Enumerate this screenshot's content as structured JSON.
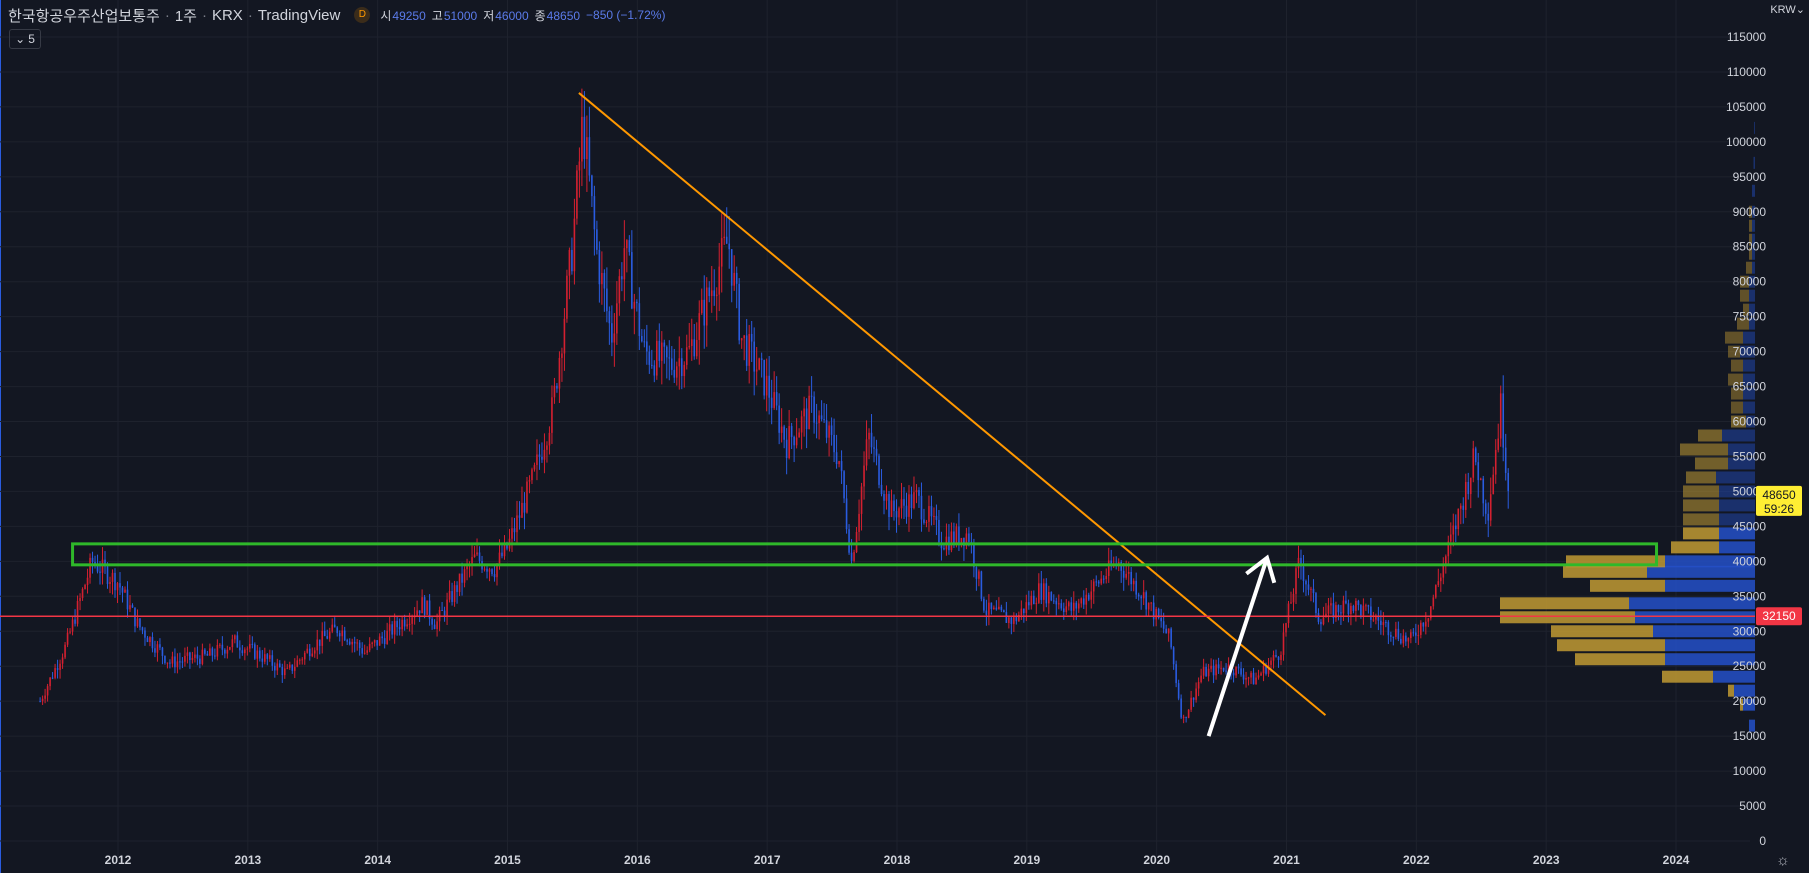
{
  "header": {
    "symbol": "한국항공우주산업보통주",
    "interval": "1주",
    "exchange": "KRX",
    "source": "TradingView",
    "badge": "D",
    "open_label": "시",
    "open": "49250",
    "high_label": "고",
    "high": "51000",
    "low_label": "저",
    "low": "46000",
    "close_label": "종",
    "close": "48650",
    "change": "−850 (−1.72%)"
  },
  "collapse_count": "5",
  "currency": "KRW",
  "colors": {
    "background": "#131722",
    "up": "#d42030",
    "down": "#2a5ce0",
    "trendline": "#ff9800",
    "zone": "#2fb82a",
    "hline": "#f23645",
    "vp_up": "#c19a33",
    "vp_down": "#2450c8",
    "price_tag": "#ffee33"
  },
  "chart_data": {
    "type": "candlestick",
    "title": "한국항공우주산업보통주 · 1주 · KRX",
    "x_ticks": [
      "2012",
      "2013",
      "2014",
      "2015",
      "2016",
      "2017",
      "2018",
      "2019",
      "2020",
      "2021",
      "2022",
      "2023",
      "2024"
    ],
    "y_ticks": [
      0,
      5000,
      10000,
      15000,
      20000,
      25000,
      30000,
      35000,
      40000,
      45000,
      50000,
      55000,
      60000,
      65000,
      70000,
      75000,
      80000,
      85000,
      90000,
      95000,
      100000,
      105000,
      110000,
      115000
    ],
    "ylim": [
      0,
      117000
    ],
    "price_path": [
      [
        2011.4,
        20000
      ],
      [
        2011.6,
        28000
      ],
      [
        2011.8,
        40000
      ],
      [
        2012.0,
        37000
      ],
      [
        2012.15,
        31000
      ],
      [
        2012.4,
        25500
      ],
      [
        2012.7,
        26500
      ],
      [
        2012.9,
        28500
      ],
      [
        2013.1,
        26500
      ],
      [
        2013.3,
        24000
      ],
      [
        2013.5,
        28000
      ],
      [
        2013.7,
        30500
      ],
      [
        2013.9,
        27000
      ],
      [
        2014.1,
        30000
      ],
      [
        2014.35,
        34000
      ],
      [
        2014.45,
        31000
      ],
      [
        2014.6,
        36000
      ],
      [
        2014.75,
        40500
      ],
      [
        2014.9,
        39000
      ],
      [
        2015.0,
        42000
      ],
      [
        2015.2,
        52000
      ],
      [
        2015.35,
        62000
      ],
      [
        2015.5,
        85000
      ],
      [
        2015.58,
        103000
      ],
      [
        2015.68,
        85000
      ],
      [
        2015.8,
        72000
      ],
      [
        2015.9,
        85000
      ],
      [
        2016.05,
        70000
      ],
      [
        2016.25,
        68000
      ],
      [
        2016.4,
        70000
      ],
      [
        2016.55,
        78000
      ],
      [
        2016.7,
        86000
      ],
      [
        2016.8,
        72000
      ],
      [
        2017.0,
        65000
      ],
      [
        2017.15,
        57000
      ],
      [
        2017.35,
        62000
      ],
      [
        2017.55,
        55000
      ],
      [
        2017.65,
        40000
      ],
      [
        2017.78,
        58000
      ],
      [
        2017.95,
        47000
      ],
      [
        2018.15,
        49000
      ],
      [
        2018.35,
        43000
      ],
      [
        2018.55,
        44000
      ],
      [
        2018.68,
        33000
      ],
      [
        2018.9,
        31500
      ],
      [
        2019.1,
        36000
      ],
      [
        2019.35,
        33000
      ],
      [
        2019.55,
        37000
      ],
      [
        2019.7,
        40000
      ],
      [
        2019.9,
        35000
      ],
      [
        2020.1,
        29000
      ],
      [
        2020.2,
        17000
      ],
      [
        2020.35,
        24000
      ],
      [
        2020.55,
        25000
      ],
      [
        2020.75,
        23000
      ],
      [
        2020.95,
        27000
      ],
      [
        2021.1,
        40000
      ],
      [
        2021.25,
        32000
      ],
      [
        2021.5,
        34000
      ],
      [
        2021.75,
        31000
      ],
      [
        2021.95,
        28500
      ],
      [
        2022.1,
        33000
      ],
      [
        2022.3,
        45000
      ],
      [
        2022.45,
        55000
      ],
      [
        2022.55,
        47000
      ],
      [
        2022.65,
        62000
      ],
      [
        2022.72,
        48650
      ]
    ],
    "trendline": [
      [
        2015.55,
        107000
      ],
      [
        2021.3,
        18000
      ]
    ],
    "arrow": {
      "from": [
        2020.4,
        15000
      ],
      "to": [
        2020.85,
        40500
      ]
    },
    "resistance_zone": {
      "y_top": 42500,
      "y_bottom": 39500,
      "x_start": 2011.65,
      "x_end": 2023.85
    },
    "horizontal_line": 32150,
    "last_price": "48650",
    "countdown": "59:26",
    "hline_label": "32150",
    "volume_profile": [
      {
        "price": 16500,
        "down": 0.02,
        "up": 0.0
      },
      {
        "price": 19500,
        "down": 0.04,
        "up": 0.01
      },
      {
        "price": 21500,
        "down": 0.07,
        "up": 0.02
      },
      {
        "price": 23500,
        "down": 0.14,
        "up": 0.17
      },
      {
        "price": 26000,
        "down": 0.3,
        "up": 0.3
      },
      {
        "price": 28000,
        "down": 0.3,
        "up": 0.36
      },
      {
        "price": 30000,
        "down": 0.34,
        "up": 0.34
      },
      {
        "price": 32000,
        "down": 0.4,
        "up": 0.45
      },
      {
        "price": 34000,
        "down": 0.42,
        "up": 0.43
      },
      {
        "price": 36500,
        "down": 0.3,
        "up": 0.25
      },
      {
        "price": 38500,
        "down": 0.36,
        "up": 0.28
      },
      {
        "price": 40000,
        "down": 0.3,
        "up": 0.33
      },
      {
        "price": 42000,
        "down": 0.12,
        "up": 0.16
      },
      {
        "price": 44000,
        "down": 0.12,
        "up": 0.12
      },
      {
        "price": 46000,
        "down": 0.12,
        "up": 0.12
      },
      {
        "price": 48000,
        "down": 0.12,
        "up": 0.12
      },
      {
        "price": 50000,
        "down": 0.12,
        "up": 0.12
      },
      {
        "price": 52000,
        "down": 0.13,
        "up": 0.1
      },
      {
        "price": 54000,
        "down": 0.09,
        "up": 0.11
      },
      {
        "price": 56000,
        "down": 0.09,
        "up": 0.16
      },
      {
        "price": 58000,
        "down": 0.11,
        "up": 0.08
      },
      {
        "price": 60000,
        "down": 0.03,
        "up": 0.05
      },
      {
        "price": 62000,
        "down": 0.04,
        "up": 0.04
      },
      {
        "price": 64000,
        "down": 0.04,
        "up": 0.04
      },
      {
        "price": 66000,
        "down": 0.04,
        "up": 0.05
      },
      {
        "price": 68000,
        "down": 0.04,
        "up": 0.04
      },
      {
        "price": 70000,
        "down": 0.05,
        "up": 0.04
      },
      {
        "price": 72000,
        "down": 0.04,
        "up": 0.06
      },
      {
        "price": 74000,
        "down": 0.02,
        "up": 0.04
      },
      {
        "price": 76000,
        "down": 0.02,
        "up": 0.02
      },
      {
        "price": 78000,
        "down": 0.02,
        "up": 0.03
      },
      {
        "price": 80000,
        "down": 0.02,
        "up": 0.03
      },
      {
        "price": 82000,
        "down": 0.01,
        "up": 0.02
      },
      {
        "price": 84000,
        "down": 0.01,
        "up": 0.01
      },
      {
        "price": 86000,
        "down": 0.01,
        "up": 0.01
      },
      {
        "price": 88000,
        "down": 0.01,
        "up": 0.01
      },
      {
        "price": 90000,
        "down": 0.01,
        "up": 0.01
      },
      {
        "price": 93000,
        "down": 0.01,
        "up": 0.0
      },
      {
        "price": 97000,
        "down": 0.005,
        "up": 0.0
      },
      {
        "price": 102000,
        "down": 0.003,
        "up": 0.0
      }
    ]
  }
}
